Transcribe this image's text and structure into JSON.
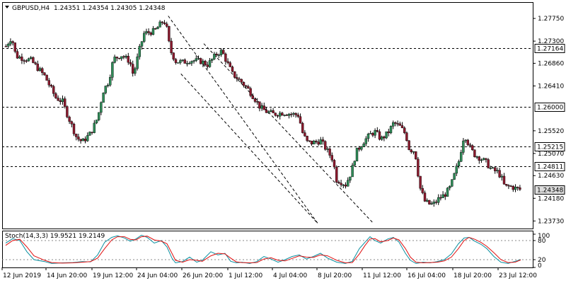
{
  "header": {
    "symbol_label": "GBPUSD,H4",
    "ohlc_label": "1.24351 1.24354 1.24305 1.24348"
  },
  "indicator": {
    "label": "Stoch(14,3,3) 19.9521 19.2149",
    "levels": [
      "100",
      "80",
      "20",
      "0"
    ]
  },
  "colors": {
    "bull": "#2e8b57",
    "bear": "#8b1a2e",
    "stoch_main": "#0a8fa0",
    "stoch_signal": "#e01010",
    "last_price_box": "#dddddd"
  },
  "chart_data": [
    {
      "type": "candlestick",
      "symbol": "GBPUSD",
      "timeframe": "H4",
      "price_ticks": [
        "1.27750",
        "1.27300",
        "1.26860",
        "1.26410",
        "1.25520",
        "1.25070",
        "1.24630",
        "1.24180",
        "1.23730"
      ],
      "ylim": [
        1.2358,
        1.2806
      ],
      "x_ticks": [
        "12 Jun 2019",
        "14 Jun 20:00",
        "19 Jun 12:00",
        "24 Jun 04:00",
        "26 Jun 20:00",
        "1 Jul 12:00",
        "4 Jul 04:00",
        "8 Jul 20:00",
        "11 Jul 12:00",
        "16 Jul 04:00",
        "18 Jul 20:00",
        "23 Jul 12:00"
      ],
      "horizontal_lines": [
        {
          "value": 1.27164,
          "label": "1.27164"
        },
        {
          "value": 1.26,
          "label": "1.26000"
        },
        {
          "value": 1.25215,
          "label": "1.25215"
        },
        {
          "value": 1.24811,
          "label": "1.24811"
        }
      ],
      "last_price": {
        "value": 1.24348,
        "label": "1.24348"
      },
      "channel_lines": [
        {
          "from": [
            0.313,
            1.278
          ],
          "to": [
            0.595,
            1.2368
          ]
        },
        {
          "from": [
            0.38,
            1.2725
          ],
          "to": [
            0.7,
            1.2368
          ]
        },
        {
          "from": [
            0.337,
            1.2665
          ],
          "to": [
            0.595,
            1.2368
          ]
        }
      ],
      "close_path": [
        [
          0,
          1.272
        ],
        [
          8,
          1.2738
        ],
        [
          14,
          1.27
        ],
        [
          35,
          1.2692
        ],
        [
          55,
          1.266
        ],
        [
          70,
          1.2618
        ],
        [
          80,
          1.261
        ],
        [
          85,
          1.259
        ],
        [
          95,
          1.2555
        ],
        [
          100,
          1.2538
        ],
        [
          108,
          1.253
        ],
        [
          120,
          1.2548
        ],
        [
          130,
          1.258
        ],
        [
          137,
          1.263
        ],
        [
          145,
          1.265
        ],
        [
          152,
          1.2695
        ],
        [
          163,
          1.2702
        ],
        [
          175,
          1.269
        ],
        [
          180,
          1.2662
        ],
        [
          188,
          1.271
        ],
        [
          195,
          1.2745
        ],
        [
          210,
          1.275
        ],
        [
          222,
          1.277
        ],
        [
          226,
          1.2765
        ],
        [
          232,
          1.2712
        ],
        [
          240,
          1.269
        ],
        [
          250,
          1.2688
        ],
        [
          260,
          1.2692
        ],
        [
          275,
          1.269
        ],
        [
          285,
          1.2683
        ],
        [
          298,
          1.2705
        ],
        [
          305,
          1.271
        ],
        [
          310,
          1.2695
        ],
        [
          320,
          1.2665
        ],
        [
          332,
          1.265
        ],
        [
          342,
          1.2635
        ],
        [
          352,
          1.2615
        ],
        [
          360,
          1.2597
        ],
        [
          368,
          1.259
        ],
        [
          378,
          1.2585
        ],
        [
          392,
          1.2588
        ],
        [
          405,
          1.2585
        ],
        [
          414,
          1.2583
        ],
        [
          418,
          1.2552
        ],
        [
          425,
          1.253
        ],
        [
          432,
          1.2528
        ],
        [
          445,
          1.2532
        ],
        [
          455,
          1.251
        ],
        [
          462,
          1.2495
        ],
        [
          467,
          1.2455
        ],
        [
          472,
          1.2452
        ],
        [
          480,
          1.2445
        ],
        [
          488,
          1.247
        ],
        [
          495,
          1.251
        ],
        [
          505,
          1.253
        ],
        [
          515,
          1.2545
        ],
        [
          522,
          1.255
        ],
        [
          530,
          1.2535
        ],
        [
          540,
          1.2548
        ],
        [
          548,
          1.2568
        ],
        [
          557,
          1.256
        ],
        [
          565,
          1.2545
        ],
        [
          570,
          1.2515
        ],
        [
          578,
          1.2512
        ],
        [
          585,
          1.244
        ],
        [
          592,
          1.2412
        ],
        [
          600,
          1.2405
        ],
        [
          606,
          1.2408
        ],
        [
          612,
          1.2418
        ],
        [
          620,
          1.2425
        ],
        [
          628,
          1.244
        ],
        [
          635,
          1.247
        ],
        [
          642,
          1.25
        ],
        [
          645,
          1.2535
        ],
        [
          650,
          1.254
        ],
        [
          655,
          1.252
        ],
        [
          662,
          1.2505
        ],
        [
          670,
          1.2498
        ],
        [
          678,
          1.249
        ],
        [
          686,
          1.2475
        ],
        [
          695,
          1.247
        ],
        [
          700,
          1.246
        ],
        [
          705,
          1.244
        ],
        [
          712,
          1.2442
        ],
        [
          720,
          1.2438
        ],
        [
          728,
          1.24348
        ]
      ]
    },
    {
      "type": "line",
      "name": "Stoch(14,3,3)",
      "ylim": [
        0,
        100
      ],
      "levels": [
        80,
        20
      ],
      "series": [
        {
          "name": "main",
          "x": [
            0,
            10,
            20,
            30,
            40,
            55,
            65,
            80,
            95,
            108,
            120,
            130,
            140,
            150,
            158,
            168,
            176,
            184,
            192,
            200,
            210,
            220,
            228,
            235,
            240,
            250,
            260,
            270,
            278,
            290,
            300,
            310,
            318,
            326,
            334,
            345,
            355,
            365,
            375,
            385,
            395,
            405,
            415,
            425,
            435,
            445,
            455,
            468,
            480,
            490,
            500,
            508,
            515,
            522,
            530,
            540,
            548,
            556,
            565,
            572,
            580,
            590,
            600,
            610,
            620,
            630,
            640,
            648,
            655,
            663,
            672,
            680,
            690,
            700,
            710,
            720,
            728
          ],
          "y": [
            72,
            86,
            80,
            45,
            20,
            14,
            8,
            10,
            11,
            14,
            13,
            35,
            75,
            90,
            95,
            88,
            78,
            85,
            97,
            90,
            72,
            80,
            60,
            25,
            10,
            14,
            28,
            12,
            18,
            45,
            35,
            40,
            15,
            10,
            12,
            8,
            14,
            30,
            22,
            12,
            20,
            30,
            35,
            22,
            30,
            40,
            25,
            12,
            8,
            15,
            55,
            75,
            92,
            80,
            72,
            85,
            90,
            75,
            40,
            18,
            8,
            12,
            10,
            14,
            20,
            38,
            70,
            88,
            90,
            78,
            68,
            55,
            30,
            12,
            8,
            15,
            19.9521
          ]
        },
        {
          "name": "signal",
          "x": [
            0,
            10,
            20,
            30,
            40,
            55,
            65,
            80,
            95,
            108,
            120,
            130,
            140,
            150,
            158,
            168,
            176,
            184,
            192,
            200,
            210,
            220,
            228,
            235,
            240,
            250,
            260,
            270,
            278,
            290,
            300,
            310,
            318,
            326,
            334,
            345,
            355,
            365,
            375,
            385,
            395,
            405,
            415,
            425,
            435,
            445,
            455,
            468,
            480,
            490,
            500,
            508,
            515,
            522,
            530,
            540,
            548,
            556,
            565,
            572,
            580,
            590,
            600,
            610,
            620,
            630,
            640,
            648,
            655,
            663,
            672,
            680,
            690,
            700,
            710,
            720,
            728
          ],
          "y": [
            65,
            80,
            84,
            60,
            32,
            18,
            11,
            9,
            10,
            12,
            14,
            25,
            55,
            82,
            92,
            92,
            84,
            82,
            92,
            94,
            82,
            78,
            70,
            40,
            18,
            12,
            20,
            18,
            15,
            32,
            40,
            38,
            25,
            13,
            11,
            10,
            11,
            22,
            26,
            18,
            16,
            24,
            32,
            28,
            27,
            35,
            32,
            18,
            10,
            11,
            38,
            65,
            85,
            86,
            76,
            80,
            88,
            82,
            55,
            28,
            12,
            10,
            11,
            12,
            16,
            28,
            55,
            80,
            90,
            84,
            74,
            62,
            42,
            20,
            11,
            12,
            19.2149
          ]
        }
      ]
    }
  ]
}
